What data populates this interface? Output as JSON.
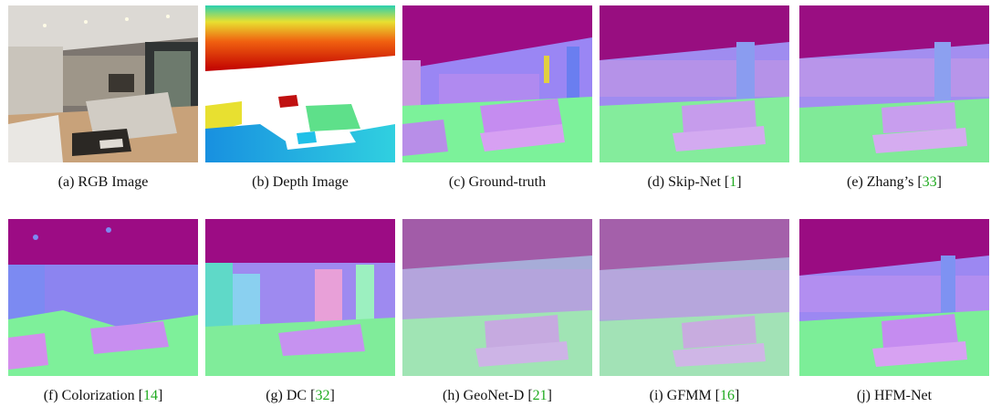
{
  "figure": {
    "panels": [
      {
        "label": "(a) RGB Image",
        "ref": "",
        "kind": "rgb"
      },
      {
        "label": "(b) Depth Image",
        "ref": "",
        "kind": "depth"
      },
      {
        "label": "(c) Ground-truth",
        "ref": "",
        "kind": "gt"
      },
      {
        "label": "(d) Skip-Net [",
        "ref": "1",
        "kind": "blur"
      },
      {
        "label": "(e) Zhang’s [",
        "ref": "33",
        "kind": "blur"
      },
      {
        "label": "(f) Colorization [",
        "ref": "14",
        "kind": "noisy"
      },
      {
        "label": "(g) DC [",
        "ref": "32",
        "kind": "dc"
      },
      {
        "label": "(h) GeoNet-D [",
        "ref": "21",
        "kind": "washed"
      },
      {
        "label": "(i) GFMM [",
        "ref": "16",
        "kind": "washed"
      },
      {
        "label": "(j) HFM-Net",
        "ref": "",
        "kind": "hfm"
      }
    ]
  }
}
